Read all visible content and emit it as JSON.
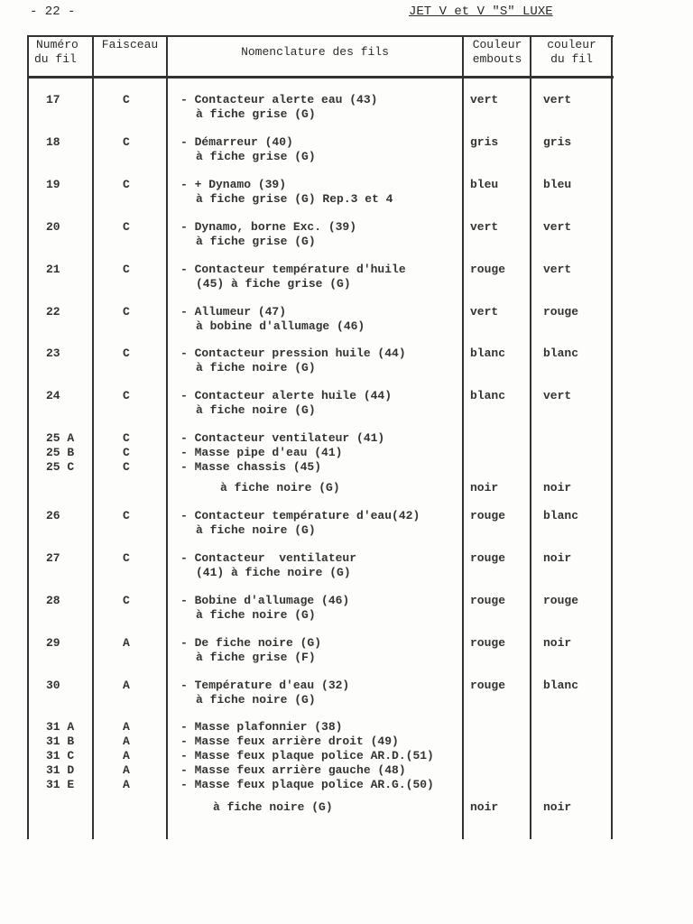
{
  "page_number": "- 22 -",
  "document_title": "JET V et V \"S\" LUXE",
  "headers": {
    "numero": [
      "Numéro",
      "du fil"
    ],
    "faisceau": "Faisceau",
    "nomenclature": "Nomenclature des fils",
    "embouts": [
      "Couleur",
      "embouts"
    ],
    "fil": [
      "couleur",
      "du fil"
    ]
  },
  "rows": [
    {
      "num": [
        "17"
      ],
      "faisceau": [
        "C"
      ],
      "desc": [
        "- Contacteur alerte eau (43)",
        "à fiche grise (G)"
      ],
      "embouts": "vert",
      "fil": "vert"
    },
    {
      "num": [
        "18"
      ],
      "faisceau": [
        "C"
      ],
      "desc": [
        "- Démarreur (40)",
        "à fiche grise (G)"
      ],
      "embouts": "gris",
      "fil": "gris"
    },
    {
      "num": [
        "19"
      ],
      "faisceau": [
        "C"
      ],
      "desc": [
        "- + Dynamo (39)",
        "à fiche grise (G) Rep.3 et 4"
      ],
      "embouts": "bleu",
      "fil": "bleu"
    },
    {
      "num": [
        "20"
      ],
      "faisceau": [
        "C"
      ],
      "desc": [
        "- Dynamo, borne Exc. (39)",
        "à fiche grise (G)"
      ],
      "embouts": "vert",
      "fil": "vert"
    },
    {
      "num": [
        "21"
      ],
      "faisceau": [
        "C"
      ],
      "desc": [
        "- Contacteur température d'huile",
        "(45) à fiche grise (G)"
      ],
      "embouts": "rouge",
      "fil": "vert"
    },
    {
      "num": [
        "22"
      ],
      "faisceau": [
        "C"
      ],
      "desc": [
        "- Allumeur (47)",
        "à bobine d'allumage (46)"
      ],
      "embouts": "vert",
      "fil": "rouge"
    },
    {
      "num": [
        "23"
      ],
      "faisceau": [
        "C"
      ],
      "desc": [
        "- Contacteur pression huile (44)",
        "à fiche noire (G)"
      ],
      "embouts": "blanc",
      "fil": "blanc"
    },
    {
      "num": [
        "24"
      ],
      "faisceau": [
        "C"
      ],
      "desc": [
        "- Contacteur alerte huile (44)",
        "à fiche noire (G)"
      ],
      "embouts": "blanc",
      "fil": "vert"
    },
    {
      "num": [
        "25 A",
        "25 B",
        "25 C"
      ],
      "faisceau": [
        "C",
        "C",
        "C"
      ],
      "desc": [
        "- Contacteur ventilateur (41)",
        "- Masse pipe d'eau (41)",
        "- Masse chassis (45)"
      ],
      "note": "à fiche noire (G)",
      "embouts": "noir",
      "fil": "noir"
    },
    {
      "num": [
        "26"
      ],
      "faisceau": [
        "C"
      ],
      "desc": [
        "- Contacteur température d'eau(42)",
        "à fiche noire (G)"
      ],
      "embouts": "rouge",
      "fil": "blanc"
    },
    {
      "num": [
        "27"
      ],
      "faisceau": [
        "C"
      ],
      "desc": [
        "- Contacteur  ventilateur",
        "(41) à fiche noire (G)"
      ],
      "embouts": "rouge",
      "fil": "noir"
    },
    {
      "num": [
        "28"
      ],
      "faisceau": [
        "C"
      ],
      "desc": [
        "- Bobine d'allumage (46)",
        "à fiche noire (G)"
      ],
      "embouts": "rouge",
      "fil": "rouge"
    },
    {
      "num": [
        "29"
      ],
      "faisceau": [
        "A"
      ],
      "desc": [
        "- De fiche noire (G)",
        "à fiche grise (F)"
      ],
      "embouts": "rouge",
      "fil": "noir"
    },
    {
      "num": [
        "30"
      ],
      "faisceau": [
        "A"
      ],
      "desc": [
        "- Température d'eau (32)",
        "à fiche noire (G)"
      ],
      "embouts": "rouge",
      "fil": "blanc"
    },
    {
      "num": [
        "31 A",
        "31 B",
        "31 C",
        "31 D",
        "31 E"
      ],
      "faisceau": [
        "A",
        "A",
        "A",
        "A",
        "A"
      ],
      "desc": [
        "- Masse plafonnier (38)",
        "- Masse feux arrière droit (49)",
        "- Masse feux plaque police AR.D.(51)",
        "- Masse feux arrière gauche (48)",
        "- Masse feux plaque police AR.G.(50)"
      ],
      "note": "à fiche noire (G)",
      "embouts": "noir",
      "fil": "noir"
    }
  ]
}
